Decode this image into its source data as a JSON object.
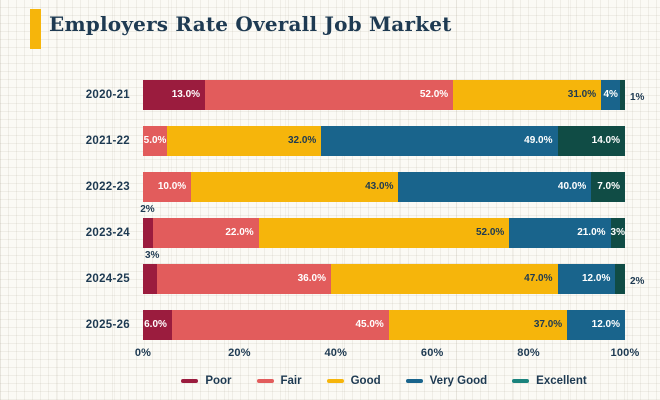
{
  "page": {
    "title": "Employers Rate Overall Job Market",
    "accent_color": "#F6B50B",
    "text_color": "#1E3A52",
    "background_color": "#FBFAF5"
  },
  "chart_data": {
    "type": "bar",
    "orientation": "horizontal",
    "stacked": true,
    "unit": "percent",
    "xlim": [
      0,
      100
    ],
    "x_ticks": [
      "0%",
      "20%",
      "40%",
      "60%",
      "80%",
      "100%"
    ],
    "grid": "graph-paper-texture",
    "legend_position": "bottom-center",
    "title": "Employers Rate Overall Job Market",
    "categories": [
      "2020-21",
      "2021-22",
      "2022-23",
      "2023-24",
      "2024-25",
      "2025-26"
    ],
    "series": [
      {
        "name": "Poor",
        "color": "#9B1C3E",
        "values": [
          13,
          0,
          0,
          2,
          3,
          6
        ]
      },
      {
        "name": "Fair",
        "color": "#E25C5C",
        "values": [
          52,
          5,
          10,
          22,
          36,
          45
        ]
      },
      {
        "name": "Good",
        "color": "#F6B50B",
        "values": [
          31,
          32,
          43,
          52,
          47,
          37
        ]
      },
      {
        "name": "Very Good",
        "color": "#19648C",
        "values": [
          4,
          49,
          40,
          21,
          12,
          12
        ]
      },
      {
        "name": "Excellent",
        "color": "#104C45",
        "values": [
          1,
          14,
          7,
          3,
          2,
          0
        ]
      }
    ],
    "value_labels": [
      [
        {
          "text": "13.0%",
          "pos": "inside",
          "tone": "light"
        },
        {
          "text": "52.0%",
          "pos": "inside",
          "tone": "light"
        },
        {
          "text": "31.0%",
          "pos": "inside",
          "tone": "dark"
        },
        {
          "text": "4%",
          "pos": "inside",
          "tone": "light"
        },
        {
          "text": "1%",
          "pos": "outside-right",
          "tone": "dark"
        }
      ],
      [
        null,
        {
          "text": "5.0%",
          "pos": "inside",
          "tone": "light"
        },
        {
          "text": "32.0%",
          "pos": "inside",
          "tone": "dark"
        },
        {
          "text": "49.0%",
          "pos": "inside",
          "tone": "light"
        },
        {
          "text": "14.0%",
          "pos": "inside",
          "tone": "light"
        }
      ],
      [
        null,
        {
          "text": "10.0%",
          "pos": "inside",
          "tone": "light"
        },
        {
          "text": "43.0%",
          "pos": "inside",
          "tone": "dark"
        },
        {
          "text": "40.0%",
          "pos": "inside",
          "tone": "light"
        },
        {
          "text": "7.0%",
          "pos": "inside",
          "tone": "light"
        }
      ],
      [
        {
          "text": "2%",
          "pos": "above-left",
          "tone": "dark"
        },
        {
          "text": "22.0%",
          "pos": "inside",
          "tone": "light"
        },
        {
          "text": "52.0%",
          "pos": "inside",
          "tone": "dark"
        },
        {
          "text": "21.0%",
          "pos": "inside",
          "tone": "light"
        },
        {
          "text": "3%",
          "pos": "inside",
          "tone": "light"
        }
      ],
      [
        {
          "text": "3%",
          "pos": "above-left",
          "tone": "dark"
        },
        {
          "text": "36.0%",
          "pos": "inside",
          "tone": "light"
        },
        {
          "text": "47.0%",
          "pos": "inside",
          "tone": "dark"
        },
        {
          "text": "12.0%",
          "pos": "inside",
          "tone": "light"
        },
        {
          "text": "2%",
          "pos": "outside-right",
          "tone": "dark"
        }
      ],
      [
        {
          "text": "6.0%",
          "pos": "inside",
          "tone": "light"
        },
        {
          "text": "45.0%",
          "pos": "inside",
          "tone": "light"
        },
        {
          "text": "37.0%",
          "pos": "inside",
          "tone": "dark"
        },
        {
          "text": "12.0%",
          "pos": "inside",
          "tone": "light"
        },
        null
      ]
    ],
    "legend": [
      {
        "label": "Poor",
        "color": "#9B1C3E"
      },
      {
        "label": "Fair",
        "color": "#E25C5C"
      },
      {
        "label": "Good",
        "color": "#F6B50B"
      },
      {
        "label": "Very Good",
        "color": "#19648C"
      },
      {
        "label": "Excellent",
        "color": "#1A837D"
      }
    ]
  }
}
